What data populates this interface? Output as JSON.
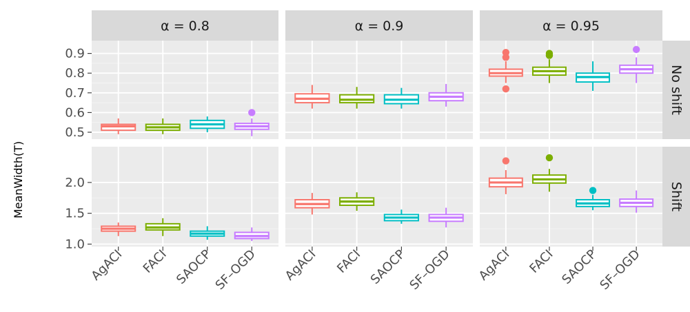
{
  "chart_data": {
    "type": "box",
    "ylabel": "MeanWidth(T)",
    "categories": [
      "AgACI",
      "FACI",
      "SAOCP",
      "SF–OGD"
    ],
    "colors": {
      "AgACI": "#F8766D",
      "FACI": "#7CAE00",
      "SAOCP": "#00BFC4",
      "SF–OGD": "#C77CFF"
    },
    "columns": [
      "α = 0.8",
      "α = 0.9",
      "α = 0.95"
    ],
    "rows": [
      "No shift",
      "Shift"
    ],
    "rows_config": [
      {
        "ylim": [
          0.465,
          0.965
        ],
        "yticks": [
          0.5,
          0.6,
          0.7,
          0.8,
          0.9
        ],
        "tick_labels": [
          "0.5",
          "0.6",
          "0.7",
          "0.8",
          "0.9"
        ]
      },
      {
        "ylim": [
          0.96,
          2.58
        ],
        "yticks": [
          1.0,
          1.5,
          2.0
        ],
        "tick_labels": [
          "1.0",
          "1.5",
          "2.0"
        ]
      }
    ],
    "panels": [
      {
        "row": 0,
        "col": 0,
        "boxes": [
          {
            "q1": 0.51,
            "median": 0.53,
            "q3": 0.54,
            "whisker_low": 0.49,
            "whisker_high": 0.57,
            "outliers": []
          },
          {
            "q1": 0.51,
            "median": 0.525,
            "q3": 0.54,
            "whisker_low": 0.49,
            "whisker_high": 0.57,
            "outliers": []
          },
          {
            "q1": 0.52,
            "median": 0.54,
            "q3": 0.56,
            "whisker_low": 0.5,
            "whisker_high": 0.58,
            "outliers": []
          },
          {
            "q1": 0.515,
            "median": 0.53,
            "q3": 0.545,
            "whisker_low": 0.48,
            "whisker_high": 0.57,
            "outliers": [
              0.6
            ]
          }
        ]
      },
      {
        "row": 0,
        "col": 1,
        "boxes": [
          {
            "q1": 0.65,
            "median": 0.67,
            "q3": 0.695,
            "whisker_low": 0.62,
            "whisker_high": 0.74,
            "outliers": []
          },
          {
            "q1": 0.65,
            "median": 0.665,
            "q3": 0.69,
            "whisker_low": 0.62,
            "whisker_high": 0.73,
            "outliers": []
          },
          {
            "q1": 0.645,
            "median": 0.665,
            "q3": 0.69,
            "whisker_low": 0.62,
            "whisker_high": 0.725,
            "outliers": []
          },
          {
            "q1": 0.66,
            "median": 0.68,
            "q3": 0.7,
            "whisker_low": 0.63,
            "whisker_high": 0.745,
            "outliers": []
          }
        ]
      },
      {
        "row": 0,
        "col": 2,
        "boxes": [
          {
            "q1": 0.785,
            "median": 0.8,
            "q3": 0.82,
            "whisker_low": 0.75,
            "whisker_high": 0.86,
            "outliers": [
              0.72,
              0.88,
              0.905
            ]
          },
          {
            "q1": 0.79,
            "median": 0.81,
            "q3": 0.83,
            "whisker_low": 0.75,
            "whisker_high": 0.87,
            "outliers": [
              0.89,
              0.9
            ]
          },
          {
            "q1": 0.755,
            "median": 0.78,
            "q3": 0.8,
            "whisker_low": 0.71,
            "whisker_high": 0.86,
            "outliers": []
          },
          {
            "q1": 0.8,
            "median": 0.82,
            "q3": 0.84,
            "whisker_low": 0.75,
            "whisker_high": 0.88,
            "outliers": [
              0.92
            ]
          }
        ]
      },
      {
        "row": 1,
        "col": 0,
        "boxes": [
          {
            "q1": 1.21,
            "median": 1.25,
            "q3": 1.29,
            "whisker_low": 1.13,
            "whisker_high": 1.35,
            "outliers": []
          },
          {
            "q1": 1.23,
            "median": 1.27,
            "q3": 1.33,
            "whisker_low": 1.13,
            "whisker_high": 1.42,
            "outliers": []
          },
          {
            "q1": 1.13,
            "median": 1.17,
            "q3": 1.21,
            "whisker_low": 1.07,
            "whisker_high": 1.29,
            "outliers": []
          },
          {
            "q1": 1.09,
            "median": 1.13,
            "q3": 1.19,
            "whisker_low": 1.05,
            "whisker_high": 1.27,
            "outliers": []
          }
        ]
      },
      {
        "row": 1,
        "col": 1,
        "boxes": [
          {
            "q1": 1.59,
            "median": 1.65,
            "q3": 1.72,
            "whisker_low": 1.48,
            "whisker_high": 1.83,
            "outliers": []
          },
          {
            "q1": 1.63,
            "median": 1.69,
            "q3": 1.75,
            "whisker_low": 1.54,
            "whisker_high": 1.84,
            "outliers": []
          },
          {
            "q1": 1.38,
            "median": 1.43,
            "q3": 1.48,
            "whisker_low": 1.33,
            "whisker_high": 1.56,
            "outliers": []
          },
          {
            "q1": 1.37,
            "median": 1.43,
            "q3": 1.48,
            "whisker_low": 1.27,
            "whisker_high": 1.59,
            "outliers": []
          }
        ]
      },
      {
        "row": 1,
        "col": 2,
        "boxes": [
          {
            "q1": 1.93,
            "median": 2.0,
            "q3": 2.07,
            "whisker_low": 1.81,
            "whisker_high": 2.2,
            "outliers": [
              2.35
            ]
          },
          {
            "q1": 1.99,
            "median": 2.05,
            "q3": 2.12,
            "whisker_low": 1.85,
            "whisker_high": 2.22,
            "outliers": [
              2.4
            ]
          },
          {
            "q1": 1.61,
            "median": 1.66,
            "q3": 1.72,
            "whisker_low": 1.55,
            "whisker_high": 1.8,
            "outliers": [
              1.87
            ]
          },
          {
            "q1": 1.61,
            "median": 1.67,
            "q3": 1.73,
            "whisker_low": 1.51,
            "whisker_high": 1.87,
            "outliers": []
          }
        ]
      }
    ]
  }
}
